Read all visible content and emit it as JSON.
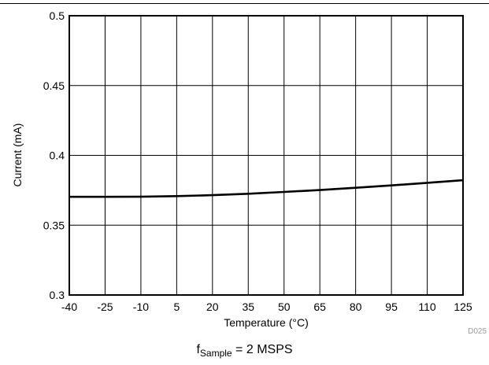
{
  "chart_data": {
    "type": "line",
    "xlabel": "Temperature (°C)",
    "ylabel": "Current (mA)",
    "xlim": [
      -40,
      125
    ],
    "ylim": [
      0.3,
      0.5
    ],
    "x_ticks": [
      -40,
      -25,
      -10,
      5,
      20,
      35,
      50,
      65,
      80,
      95,
      110,
      125
    ],
    "y_ticks": [
      "0.3",
      "0.35",
      "0.4",
      "0.45",
      "0.5"
    ],
    "grid": true,
    "series": [
      {
        "x": [
          -40,
          -25,
          -10,
          5,
          20,
          35,
          50,
          65,
          80,
          95,
          110,
          125
        ],
        "y": [
          0.3703,
          0.3703,
          0.3704,
          0.3708,
          0.3715,
          0.3725,
          0.3738,
          0.3752,
          0.3768,
          0.3785,
          0.3803,
          0.3822
        ],
        "color": "#000000"
      }
    ],
    "figure_id": "D025",
    "caption": {
      "main": "f",
      "subscript": "Sample",
      "rest": " = 2 MSPS"
    }
  }
}
